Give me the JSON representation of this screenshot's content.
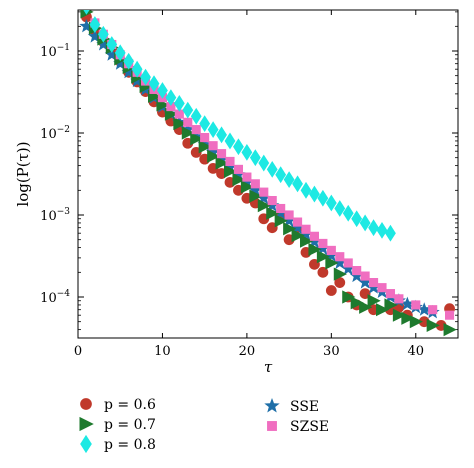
{
  "chart_data": {
    "type": "scatter",
    "xlabel": "τ",
    "ylabel": "log(P(τ))",
    "xlim": [
      0,
      45
    ],
    "ylim_log10": [
      -4.5,
      -0.5
    ],
    "y_scale": "log",
    "x_ticks": [
      0,
      10,
      20,
      30,
      40
    ],
    "y_ticks": [
      {
        "value": 0.1,
        "base": "10",
        "exp": "−1"
      },
      {
        "value": 0.01,
        "base": "10",
        "exp": "−2"
      },
      {
        "value": 0.001,
        "base": "10",
        "exp": "−3"
      },
      {
        "value": 0.0001,
        "base": "10",
        "exp": "−4"
      }
    ],
    "grid": false,
    "legend_position": "bottom",
    "series": [
      {
        "name": "p = 0.6",
        "color": "#c0392b",
        "marker": "circle",
        "points": [
          [
            1,
            0.26
          ],
          [
            2,
            0.18
          ],
          [
            3,
            0.13
          ],
          [
            4,
            0.1
          ],
          [
            5,
            0.075
          ],
          [
            6,
            0.055
          ],
          [
            7,
            0.042
          ],
          [
            8,
            0.032
          ],
          [
            9,
            0.024
          ],
          [
            10,
            0.018
          ],
          [
            11,
            0.014
          ],
          [
            12,
            0.011
          ],
          [
            13,
            0.0075
          ],
          [
            14,
            0.0058
          ],
          [
            15,
            0.0048
          ],
          [
            16,
            0.0037
          ],
          [
            17,
            0.0032
          ],
          [
            18,
            0.0025
          ],
          [
            19,
            0.002
          ],
          [
            20,
            0.0016
          ],
          [
            21,
            0.0014
          ],
          [
            22,
            0.0009
          ],
          [
            23,
            0.0007
          ],
          [
            24,
            0.00095
          ],
          [
            25,
            0.0005
          ],
          [
            26,
            0.0007
          ],
          [
            27,
            0.00035
          ],
          [
            28,
            0.00025
          ],
          [
            29,
            0.0002
          ],
          [
            30,
            0.00012
          ],
          [
            31,
            0.00015
          ],
          [
            32,
            0.0001
          ],
          [
            33,
            8e-05
          ],
          [
            34,
            0.00011
          ],
          [
            35,
            7e-05
          ],
          [
            37,
            7e-05
          ],
          [
            38,
            7.5e-05
          ],
          [
            39,
            6e-05
          ],
          [
            41,
            5e-05
          ],
          [
            43,
            4.5e-05
          ],
          [
            44,
            7.2e-05
          ]
        ]
      },
      {
        "name": "p = 0.7",
        "color": "#1e7a2e",
        "marker": "triangle-right",
        "points": [
          [
            1,
            0.3
          ],
          [
            2,
            0.19
          ],
          [
            3,
            0.14
          ],
          [
            4,
            0.11
          ],
          [
            5,
            0.08
          ],
          [
            6,
            0.063
          ],
          [
            7,
            0.048
          ],
          [
            8,
            0.037
          ],
          [
            9,
            0.028
          ],
          [
            10,
            0.022
          ],
          [
            11,
            0.017
          ],
          [
            12,
            0.013
          ],
          [
            13,
            0.01
          ],
          [
            14,
            0.0085
          ],
          [
            15,
            0.0068
          ],
          [
            16,
            0.0052
          ],
          [
            17,
            0.0043
          ],
          [
            18,
            0.0034
          ],
          [
            19,
            0.0027
          ],
          [
            20,
            0.0022
          ],
          [
            21,
            0.0017
          ],
          [
            22,
            0.0013
          ],
          [
            23,
            0.00105
          ],
          [
            24,
            0.00085
          ],
          [
            25,
            0.00068
          ],
          [
            26,
            0.00056
          ],
          [
            27,
            0.00048
          ],
          [
            28,
            0.00038
          ],
          [
            29,
            0.00031
          ],
          [
            30,
            0.00026
          ],
          [
            31,
            0.00019
          ],
          [
            32,
            0.0001
          ],
          [
            33,
            8.5e-05
          ],
          [
            34,
            7.5e-05
          ],
          [
            35,
            9e-05
          ],
          [
            36,
            7e-05
          ],
          [
            37,
            8e-05
          ],
          [
            38,
            6e-05
          ],
          [
            39,
            5.5e-05
          ],
          [
            40,
            5e-05
          ],
          [
            42,
            4.5e-05
          ],
          [
            44,
            4e-05
          ]
        ]
      },
      {
        "name": "p = 0.8",
        "color": "#1de9e3",
        "marker": "diamond",
        "points": [
          [
            1,
            0.35
          ],
          [
            2,
            0.21
          ],
          [
            3,
            0.16
          ],
          [
            4,
            0.12
          ],
          [
            5,
            0.095
          ],
          [
            6,
            0.075
          ],
          [
            7,
            0.06
          ],
          [
            8,
            0.048
          ],
          [
            9,
            0.04
          ],
          [
            10,
            0.033
          ],
          [
            11,
            0.027
          ],
          [
            12,
            0.023
          ],
          [
            13,
            0.019
          ],
          [
            14,
            0.016
          ],
          [
            15,
            0.013
          ],
          [
            16,
            0.011
          ],
          [
            17,
            0.0095
          ],
          [
            18,
            0.008
          ],
          [
            19,
            0.0068
          ],
          [
            20,
            0.0058
          ],
          [
            21,
            0.005
          ],
          [
            22,
            0.0043
          ],
          [
            23,
            0.0036
          ],
          [
            24,
            0.0031
          ],
          [
            25,
            0.0027
          ],
          [
            26,
            0.0024
          ],
          [
            27,
            0.002
          ],
          [
            28,
            0.0018
          ],
          [
            29,
            0.0016
          ],
          [
            30,
            0.0014
          ],
          [
            31,
            0.0012
          ],
          [
            32,
            0.00105
          ],
          [
            33,
            0.0009
          ],
          [
            34,
            0.0008
          ],
          [
            35,
            0.0007
          ],
          [
            36,
            0.00065
          ],
          [
            37,
            0.0006
          ]
        ]
      },
      {
        "name": "SSE",
        "color": "#1f6fa8",
        "marker": "star",
        "points": [
          [
            1,
            0.2
          ],
          [
            2,
            0.15
          ],
          [
            3,
            0.12
          ],
          [
            4,
            0.09
          ],
          [
            5,
            0.07
          ],
          [
            6,
            0.055
          ],
          [
            7,
            0.043
          ],
          [
            8,
            0.034
          ],
          [
            9,
            0.027
          ],
          [
            10,
            0.021
          ],
          [
            11,
            0.017
          ],
          [
            12,
            0.0135
          ],
          [
            13,
            0.011
          ],
          [
            14,
            0.009
          ],
          [
            15,
            0.0072
          ],
          [
            16,
            0.0058
          ],
          [
            17,
            0.0047
          ],
          [
            18,
            0.0038
          ],
          [
            19,
            0.0031
          ],
          [
            20,
            0.0025
          ],
          [
            21,
            0.002
          ],
          [
            22,
            0.0016
          ],
          [
            23,
            0.0013
          ],
          [
            24,
            0.00105
          ],
          [
            25,
            0.00085
          ],
          [
            26,
            0.0007
          ],
          [
            27,
            0.00058
          ],
          [
            28,
            0.00047
          ],
          [
            29,
            0.00039
          ],
          [
            30,
            0.00032
          ],
          [
            31,
            0.00026
          ],
          [
            32,
            0.00022
          ],
          [
            33,
            0.00018
          ],
          [
            34,
            0.00015
          ],
          [
            35,
            0.00013
          ],
          [
            36,
            0.000115
          ],
          [
            37,
            0.0001
          ],
          [
            38,
            9e-05
          ],
          [
            39,
            8.2e-05
          ],
          [
            40,
            7.5e-05
          ],
          [
            41,
            7e-05
          ],
          [
            42,
            6.5e-05
          ]
        ]
      },
      {
        "name": "SZSE",
        "color": "#f06ec0",
        "marker": "square",
        "points": [
          [
            1,
            0.38
          ],
          [
            2,
            0.22
          ],
          [
            3,
            0.16
          ],
          [
            4,
            0.12
          ],
          [
            5,
            0.09
          ],
          [
            6,
            0.07
          ],
          [
            7,
            0.055
          ],
          [
            8,
            0.043
          ],
          [
            9,
            0.034
          ],
          [
            10,
            0.027
          ],
          [
            11,
            0.021
          ],
          [
            12,
            0.017
          ],
          [
            13,
            0.0135
          ],
          [
            14,
            0.011
          ],
          [
            15,
            0.0088
          ],
          [
            16,
            0.007
          ],
          [
            17,
            0.0056
          ],
          [
            18,
            0.0045
          ],
          [
            19,
            0.0036
          ],
          [
            20,
            0.0029
          ],
          [
            21,
            0.0024
          ],
          [
            22,
            0.0019
          ],
          [
            23,
            0.0015
          ],
          [
            24,
            0.0012
          ],
          [
            25,
            0.001
          ],
          [
            26,
            0.00082
          ],
          [
            27,
            0.00067
          ],
          [
            28,
            0.00055
          ],
          [
            29,
            0.00045
          ],
          [
            30,
            0.00037
          ],
          [
            31,
            0.00031
          ],
          [
            32,
            0.00026
          ],
          [
            33,
            0.00021
          ],
          [
            34,
            0.00018
          ],
          [
            35,
            0.00015
          ],
          [
            36,
            0.00013
          ],
          [
            37,
            0.00011
          ],
          [
            38,
            9.5e-05
          ],
          [
            40,
            8e-05
          ],
          [
            42,
            7e-05
          ],
          [
            44,
            6e-05
          ]
        ]
      }
    ]
  }
}
